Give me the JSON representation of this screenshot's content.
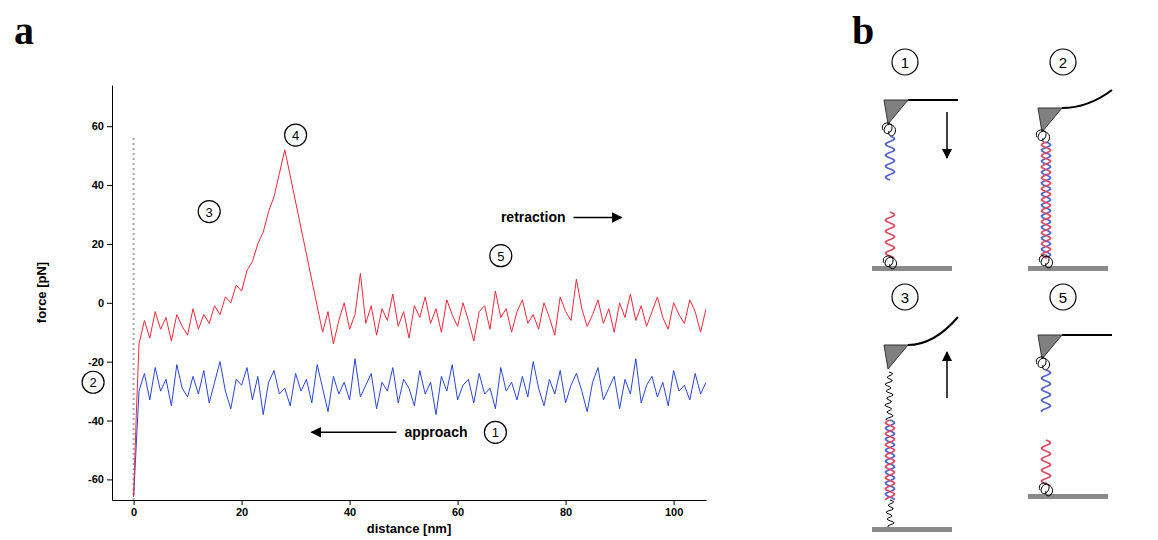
{
  "chart_data": {
    "type": "line",
    "panel_label": "a",
    "x_label": "distance [nm]",
    "y_label": "force [pN]",
    "xlim": [
      -4,
      106
    ],
    "xticks": [
      0,
      20,
      40,
      60,
      80,
      100
    ],
    "ylim": [
      -67,
      74
    ],
    "yticks": [
      -60,
      -40,
      -20,
      0,
      20,
      40,
      60
    ],
    "series": [
      {
        "color": "#2b45d6",
        "x": [
          0,
          0.5,
          1,
          2,
          3,
          4,
          5,
          6,
          7,
          8,
          9,
          10,
          11,
          12,
          13,
          14,
          15,
          16,
          17,
          18,
          19,
          20,
          21,
          22,
          23,
          24,
          25,
          26,
          27,
          28,
          29,
          30,
          31,
          32,
          33,
          34,
          35,
          36,
          37,
          38,
          39,
          40,
          41,
          42,
          43,
          44,
          45,
          46,
          47,
          48,
          49,
          50,
          51,
          52,
          53,
          54,
          55,
          56,
          57,
          58,
          59,
          60,
          61,
          62,
          63,
          64,
          65,
          66,
          67,
          68,
          69,
          70,
          71,
          72,
          73,
          74,
          75,
          76,
          77,
          78,
          79,
          80,
          81,
          82,
          83,
          84,
          85,
          86,
          87,
          88,
          89,
          90,
          91,
          92,
          93,
          94,
          95,
          96,
          97,
          98,
          99,
          100,
          101,
          102,
          103,
          104,
          105,
          106
        ],
        "values": [
          -66,
          -48,
          -30,
          -24,
          -33,
          -22,
          -30,
          -26,
          -35,
          -21,
          -29,
          -32,
          -25,
          -31,
          -23,
          -34,
          -27,
          -20,
          -30,
          -36,
          -26,
          -28,
          -22,
          -33,
          -25,
          -38,
          -27,
          -23,
          -31,
          -29,
          -35,
          -24,
          -30,
          -26,
          -34,
          -21,
          -29,
          -37,
          -25,
          -31,
          -27,
          -33,
          -19,
          -32,
          -28,
          -24,
          -36,
          -27,
          -30,
          -22,
          -34,
          -26,
          -29,
          -35,
          -23,
          -31,
          -27,
          -38,
          -25,
          -30,
          -21,
          -33,
          -28,
          -26,
          -34,
          -24,
          -31,
          -29,
          -36,
          -22,
          -30,
          -27,
          -33,
          -25,
          -32,
          -20,
          -29,
          -35,
          -26,
          -31,
          -23,
          -34,
          -28,
          -24,
          -30,
          -37,
          -27,
          -22,
          -33,
          -29,
          -25,
          -36,
          -26,
          -31,
          -19,
          -34,
          -28,
          -25,
          -32,
          -27,
          -35,
          -23,
          -30,
          -28,
          -33,
          -24,
          -31,
          -27
        ]
      },
      {
        "color": "#f0283c",
        "x": [
          0,
          0.5,
          1,
          2,
          3,
          4,
          5,
          6,
          7,
          8,
          9,
          10,
          11,
          12,
          13,
          14,
          15,
          16,
          17,
          18,
          19,
          20,
          21,
          22,
          23,
          24,
          25,
          26,
          27,
          28,
          35,
          36,
          37,
          38,
          39,
          40,
          41,
          42,
          43,
          44,
          45,
          46,
          47,
          48,
          49,
          50,
          51,
          52,
          53,
          54,
          55,
          56,
          57,
          58,
          59,
          60,
          61,
          62,
          63,
          64,
          65,
          66,
          67,
          68,
          69,
          70,
          71,
          72,
          73,
          74,
          75,
          76,
          77,
          78,
          79,
          80,
          81,
          82,
          83,
          84,
          85,
          86,
          87,
          88,
          89,
          90,
          91,
          92,
          93,
          94,
          95,
          96,
          97,
          98,
          99,
          100,
          101,
          102,
          103,
          104,
          105,
          106
        ],
        "values": [
          -66,
          -38,
          -14,
          -6,
          -12,
          -3,
          -9,
          -5,
          -13,
          -4,
          -8,
          -11,
          -2,
          -9,
          -4,
          -7,
          -1,
          -4,
          2,
          0,
          6,
          4,
          11,
          14,
          20,
          24,
          31,
          36,
          44,
          52,
          -10,
          -3,
          -14,
          -6,
          0,
          -9,
          -4,
          10,
          -7,
          -1,
          -11,
          -2,
          -6,
          3,
          -8,
          -3,
          -12,
          -1,
          -5,
          2,
          -7,
          -2,
          -10,
          1,
          -4,
          -8,
          0,
          -6,
          -13,
          -3,
          -1,
          -9,
          4,
          -5,
          -2,
          -10,
          -3,
          1,
          -7,
          -4,
          -9,
          0,
          -5,
          -11,
          2,
          -3,
          -6,
          8,
          -2,
          -8,
          -4,
          1,
          -7,
          -2,
          -10,
          0,
          -5,
          3,
          -6,
          -1,
          -8,
          -3,
          2,
          -5,
          -9,
          0,
          -4,
          -7,
          1,
          -3,
          -10,
          -2
        ]
      }
    ],
    "vlines": [
      {
        "x": 0,
        "y": [
          -67,
          56
        ]
      }
    ],
    "annotations": [
      {
        "text": "1",
        "x": 67,
        "y": -44,
        "marker": "circle"
      },
      {
        "text": "2",
        "x": -7.5,
        "y": -27,
        "marker": "circle"
      },
      {
        "text": "3",
        "x": 14,
        "y": 31,
        "marker": "circle"
      },
      {
        "text": "4",
        "x": 30,
        "y": 57,
        "marker": "circle"
      },
      {
        "text": "5",
        "x": 68,
        "y": 16,
        "marker": "circle"
      },
      {
        "text": "approach",
        "x": 56,
        "y": -44,
        "marker": "arrow-left"
      },
      {
        "text": "retraction",
        "x": 74,
        "y": 29,
        "marker": "arrow-right"
      }
    ]
  },
  "diagram": {
    "panel_label": "b",
    "steps": [
      "1",
      "2",
      "3",
      "5"
    ]
  }
}
